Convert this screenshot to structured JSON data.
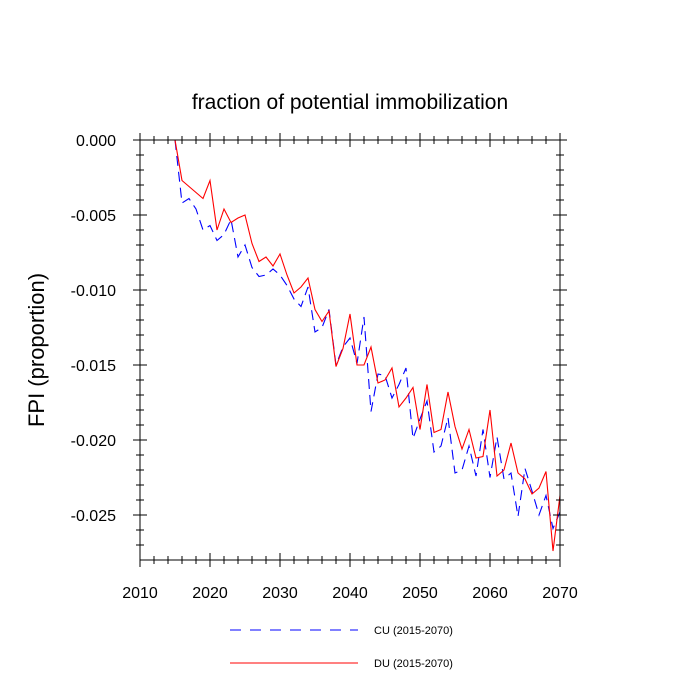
{
  "chart_data": {
    "type": "line",
    "title": "fraction of potential immobilization",
    "xlabel": "",
    "ylabel": "FPI  (proportion)",
    "xlim": [
      2010,
      2070
    ],
    "ylim": [
      -0.028,
      0.0
    ],
    "xticks": [
      2010,
      2020,
      2030,
      2040,
      2050,
      2060,
      2070
    ],
    "xtick_labels": [
      "2010",
      "2020",
      "2030",
      "2040",
      "2050",
      "2060",
      "2070"
    ],
    "yticks": [
      0.0,
      -0.005,
      -0.01,
      -0.015,
      -0.02,
      -0.025
    ],
    "ytick_labels": [
      "0.000",
      "-0.005",
      "-0.010",
      "-0.015",
      "-0.020",
      "-0.025"
    ],
    "x": [
      2015,
      2016,
      2017,
      2018,
      2019,
      2020,
      2021,
      2022,
      2023,
      2024,
      2025,
      2026,
      2027,
      2028,
      2029,
      2030,
      2031,
      2032,
      2033,
      2034,
      2035,
      2036,
      2037,
      2038,
      2039,
      2040,
      2041,
      2042,
      2043,
      2044,
      2045,
      2046,
      2047,
      2048,
      2049,
      2050,
      2051,
      2052,
      2053,
      2054,
      2055,
      2056,
      2057,
      2058,
      2059,
      2060,
      2061,
      2062,
      2063,
      2064,
      2065,
      2066,
      2067,
      2068,
      2069,
      2070
    ],
    "series": [
      {
        "name": "CU (2015-2070)",
        "color": "#0000ff",
        "dash": "dashed",
        "values": [
          0.0,
          -0.0042,
          -0.0039,
          -0.0046,
          -0.006,
          -0.0057,
          -0.0067,
          -0.0063,
          -0.0053,
          -0.0078,
          -0.007,
          -0.0085,
          -0.0091,
          -0.009,
          -0.0086,
          -0.009,
          -0.0097,
          -0.0106,
          -0.0111,
          -0.0098,
          -0.0128,
          -0.0125,
          -0.0113,
          -0.015,
          -0.0138,
          -0.0132,
          -0.0149,
          -0.0118,
          -0.0181,
          -0.0156,
          -0.0157,
          -0.0172,
          -0.0163,
          -0.0152,
          -0.0199,
          -0.0186,
          -0.0174,
          -0.0208,
          -0.0204,
          -0.0185,
          -0.0222,
          -0.022,
          -0.0204,
          -0.0224,
          -0.0193,
          -0.0225,
          -0.0198,
          -0.0226,
          -0.0222,
          -0.0251,
          -0.0219,
          -0.0234,
          -0.025,
          -0.0237,
          -0.0259,
          -0.0248
        ]
      },
      {
        "name": "DU (2015-2070)",
        "color": "#ff0000",
        "dash": "solid",
        "values": [
          0.0,
          -0.0027,
          -0.0031,
          -0.0035,
          -0.0039,
          -0.0027,
          -0.006,
          -0.0046,
          -0.0055,
          -0.0052,
          -0.005,
          -0.0069,
          -0.0081,
          -0.0078,
          -0.0084,
          -0.0076,
          -0.009,
          -0.0102,
          -0.0098,
          -0.0092,
          -0.0113,
          -0.0121,
          -0.0114,
          -0.0151,
          -0.0139,
          -0.0116,
          -0.015,
          -0.015,
          -0.0138,
          -0.0162,
          -0.016,
          -0.0152,
          -0.0178,
          -0.0172,
          -0.0165,
          -0.0193,
          -0.0163,
          -0.0195,
          -0.0193,
          -0.0168,
          -0.0191,
          -0.0206,
          -0.0193,
          -0.0212,
          -0.0211,
          -0.018,
          -0.0224,
          -0.022,
          -0.0202,
          -0.0222,
          -0.0226,
          -0.0236,
          -0.0232,
          -0.0221,
          -0.0274,
          -0.0237
        ]
      }
    ],
    "legend_position": "bottom-center"
  }
}
